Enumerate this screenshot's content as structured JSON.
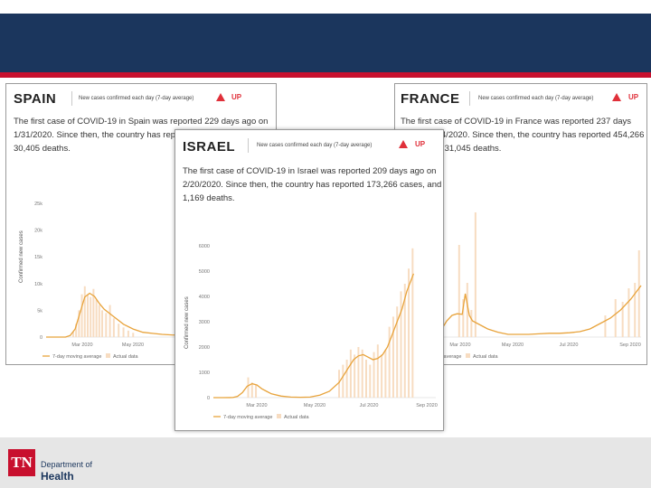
{
  "colors": {
    "band": "#1b365d",
    "accent": "#c8102e",
    "trend": "#e8a33b",
    "bars": "#f7dcc1",
    "up": "#e0303a"
  },
  "footer": {
    "logo": "TN",
    "dept": "Department of",
    "health": "Health"
  },
  "cards": {
    "spain": {
      "name": "SPAIN",
      "metric": "New cases confirmed each day (7-day average)",
      "status": "UP",
      "summary": "The first case of COVID-19 in Spain was reported 229 days ago on 1/31/2020. Since then, the country has reported 603,167 cases, and 30,405 deaths."
    },
    "france": {
      "name": "FRANCE",
      "metric": "New cases confirmed each day (7-day average)",
      "status": "UP",
      "summary": "The first case of COVID-19 in France was reported 237 days ago on 1/24/2020. Since then, the country has reported 454,266 cases, and 31,045 deaths."
    },
    "israel": {
      "name": "ISRAEL",
      "metric": "New cases confirmed each day (7-day average)",
      "status": "UP",
      "summary": "The first case of COVID-19 in Israel was reported 209 days ago on 2/20/2020. Since then, the country has reported 173,266 cases, and 1,169 deaths."
    }
  },
  "chart_data": [
    {
      "id": "spain",
      "type": "bar",
      "ylabel": "Confirmed new cases",
      "yticks": [
        "0",
        "5k",
        "10k",
        "15k",
        "20k",
        "25k"
      ],
      "ylim": [
        0,
        25000
      ],
      "xticks": [
        "Mar 2020",
        "May 2020"
      ],
      "legend": [
        "7-day moving average",
        "Actual data"
      ],
      "series": [
        {
          "name": "7-day moving average",
          "x": [
            0,
            10,
            20,
            25,
            30,
            35,
            40,
            45,
            50,
            55,
            60,
            70,
            80,
            90,
            100,
            110,
            120,
            130,
            140,
            150,
            160,
            170,
            180,
            190,
            200,
            210,
            220,
            230
          ],
          "values": [
            0,
            0,
            0,
            300,
            1500,
            4500,
            7500,
            8200,
            7600,
            6300,
            5200,
            3800,
            2400,
            1500,
            900,
            700,
            500,
            400,
            350,
            400,
            500,
            900,
            1500,
            2500,
            3500,
            4500,
            6000,
            8500
          ]
        },
        {
          "name": "Actual data",
          "x": [
            28,
            31,
            34,
            37,
            40,
            43,
            46,
            49,
            52,
            55,
            58,
            62,
            66,
            70,
            75,
            80,
            85,
            90
          ],
          "values": [
            1000,
            2500,
            5000,
            8000,
            9500,
            8000,
            7500,
            9000,
            7000,
            6000,
            5000,
            4500,
            6000,
            3500,
            2500,
            1800,
            1200,
            800
          ]
        }
      ]
    },
    {
      "id": "france",
      "type": "bar",
      "xticks": [
        "Mar 2020",
        "May 2020",
        "Jul 2020",
        "Sep 2020"
      ],
      "legend": [
        "7-day moving average",
        "Actual data"
      ],
      "ylim": [
        0,
        25000
      ],
      "series": [
        {
          "name": "7-day moving average",
          "x": [
            0,
            20,
            30,
            35,
            40,
            45,
            50,
            55,
            58,
            62,
            65,
            70,
            80,
            90,
            100,
            110,
            120,
            130,
            140,
            150,
            160,
            170,
            180,
            190,
            200,
            210,
            220,
            230
          ],
          "values": [
            0,
            0,
            200,
            1500,
            3000,
            4000,
            4300,
            4200,
            8000,
            4000,
            3000,
            2500,
            1500,
            900,
            500,
            500,
            500,
            600,
            700,
            700,
            800,
            1000,
            1500,
            2500,
            3500,
            5000,
            7000,
            9500
          ]
        },
        {
          "name": "Actual data",
          "x": [
            52,
            56,
            60,
            64,
            68,
            195,
            205,
            212,
            218,
            224,
            228
          ],
          "values": [
            17000,
            7000,
            10000,
            5000,
            23000,
            4000,
            7000,
            6500,
            9000,
            10000,
            16000
          ]
        }
      ]
    },
    {
      "id": "israel",
      "type": "bar",
      "ylabel": "Confirmed new cases",
      "yticks": [
        "0",
        "1000",
        "2000",
        "3000",
        "4000",
        "5000",
        "6000"
      ],
      "ylim": [
        0,
        6000
      ],
      "xticks": [
        "Mar 2020",
        "May 2020",
        "Jul 2020",
        "Sep 2020"
      ],
      "legend": [
        "7-day moving average",
        "Actual data"
      ],
      "series": [
        {
          "name": "7-day moving average",
          "x": [
            0,
            10,
            20,
            25,
            30,
            35,
            40,
            45,
            50,
            55,
            60,
            70,
            80,
            90,
            100,
            110,
            120,
            130,
            135,
            140,
            145,
            150,
            155,
            160,
            165,
            170,
            175,
            180,
            185,
            190,
            195,
            200,
            205,
            207
          ],
          "values": [
            0,
            0,
            5,
            50,
            200,
            450,
            550,
            500,
            350,
            250,
            150,
            60,
            20,
            15,
            20,
            100,
            250,
            600,
            900,
            1200,
            1500,
            1650,
            1700,
            1600,
            1500,
            1550,
            1700,
            2000,
            2500,
            3000,
            3500,
            4200,
            4700,
            4900
          ]
        },
        {
          "name": "Actual data",
          "x": [
            36,
            40,
            44,
            130,
            134,
            138,
            142,
            146,
            150,
            154,
            158,
            162,
            166,
            170,
            174,
            178,
            182,
            186,
            190,
            194,
            198,
            202,
            206
          ],
          "values": [
            800,
            600,
            500,
            1100,
            1300,
            1500,
            1900,
            1700,
            2000,
            1900,
            1500,
            1300,
            1800,
            2100,
            1700,
            1900,
            2800,
            3200,
            3600,
            4200,
            4500,
            5100,
            5900
          ]
        }
      ]
    }
  ]
}
